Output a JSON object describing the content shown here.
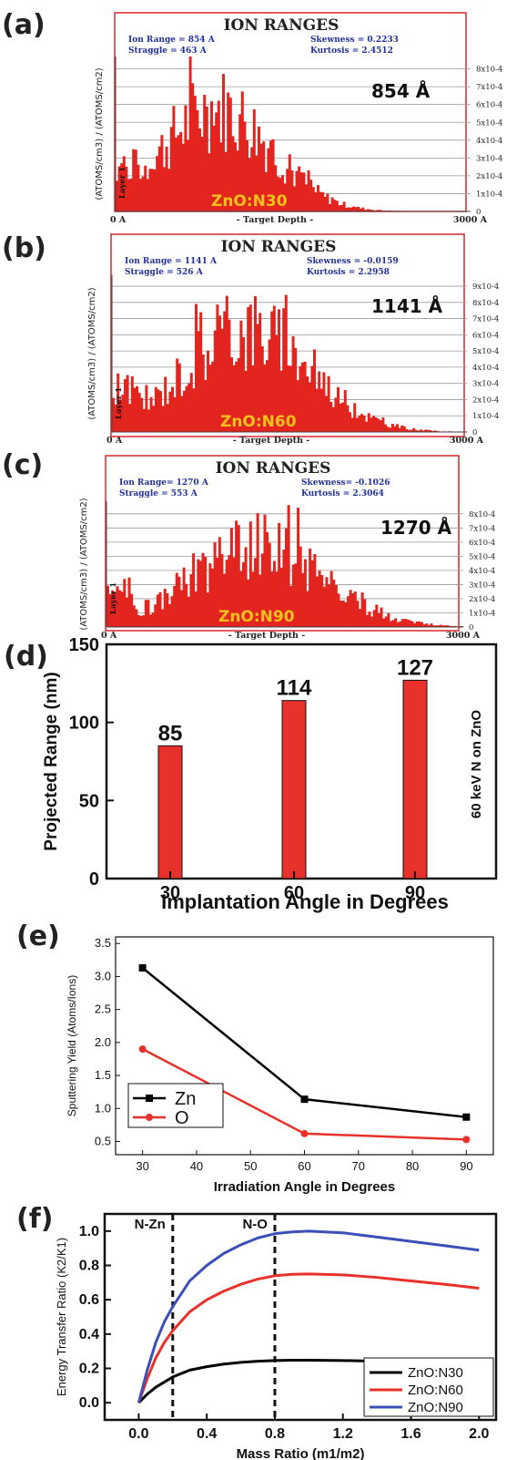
{
  "panels": [
    {
      "letter": "(a)",
      "chart_data": {
        "type": "bar",
        "title": "ION RANGES",
        "stats": {
          "range": "Ion Range = 854 A",
          "straggle": "Straggle = 463 A",
          "skewness": "Skewness = 0.2233",
          "kurtosis": "Kurtosis = 2.4512"
        },
        "ylabel": "(ATOMS/cm3) / (ATOMS/cm2)",
        "xlabel": "- Target Depth -",
        "x_start_label": "0 A",
        "x_end_label": "3000 A",
        "yticks": [
          "8x10-4",
          "7x10-4",
          "6x10-4",
          "5x10-4",
          "4x10-4",
          "3x10-4",
          "2x10-4",
          "1x10-4",
          "0"
        ],
        "layer_label": "Layer 1",
        "annotation": "854 Å",
        "sample_label": "ZnO:N30",
        "xlim": [
          0,
          3000
        ],
        "ylim": [
          0,
          0.0009
        ],
        "peak_depth": 854,
        "straggle": 463,
        "peak": 0.0006
      }
    },
    {
      "letter": "(b)",
      "chart_data": {
        "type": "bar",
        "title": "ION RANGES",
        "stats": {
          "range": "Ion Range = 1141 A",
          "straggle": "Straggle = 526 A",
          "skewness": "Skewness = -0.0159",
          "kurtosis": "Kurtosis = 2.2958"
        },
        "ylabel": "(ATOMS/cm3) / (ATOMS/cm2)",
        "xlabel": "- Target Depth -",
        "x_start_label": "0 A",
        "x_end_label": "3000 A",
        "yticks": [
          "9x10-4",
          "8x10-4",
          "7x10-4",
          "6x10-4",
          "5x10-4",
          "4x10-4",
          "3x10-4",
          "2x10-4",
          "1x10-4",
          "0"
        ],
        "layer_label": "Layer 1",
        "annotation": "1141 Å",
        "sample_label": "ZnO:N60",
        "xlim": [
          0,
          3000
        ],
        "ylim": [
          0,
          0.00095
        ],
        "peak_depth": 1141,
        "straggle": 526,
        "peak": 0.00062
      }
    },
    {
      "letter": "(c)",
      "chart_data": {
        "type": "bar",
        "title": "ION RANGES",
        "stats": {
          "range": "Ion Range= 1270 A",
          "straggle": "Straggle = 553 A",
          "skewness": "Skewness= -0.1026",
          "kurtosis": "Kurtosis = 2.3064"
        },
        "ylabel": "(ATOMS/cm3) / (ATOMS/cm2)",
        "xlabel": "- Target Depth -",
        "x_start_label": "0 A",
        "x_end_label": "3000 A",
        "yticks": [
          "8x10-4",
          "7x10-4",
          "6x10-4",
          "5x10-4",
          "4x10-4",
          "3x10-4",
          "2x10-4",
          "1x10-4",
          "0"
        ],
        "layer_label": "Layer 1",
        "annotation": "1270 Å",
        "sample_label": "ZnO:N90",
        "xlim": [
          0,
          3000
        ],
        "ylim": [
          0,
          0.00088
        ],
        "peak_depth": 1270,
        "straggle": 553,
        "peak": 0.00058
      }
    }
  ],
  "panel_d": {
    "letter": "(d)",
    "chart_data": {
      "type": "bar",
      "categories": [
        "30",
        "60",
        "90"
      ],
      "values": [
        85,
        114,
        127
      ],
      "value_labels": [
        "85",
        "114",
        "127"
      ],
      "ylabel": "Projected Range (nm)",
      "xlabel": "Implantation Angle in Degrees",
      "side_label": "60 keV N on ZnO",
      "ylim": [
        0,
        150
      ],
      "yticks": [
        "0",
        "50",
        "100",
        "150"
      ],
      "bar_color": "#e8312a"
    }
  },
  "panel_e": {
    "letter": "(e)",
    "chart_data": {
      "type": "line",
      "x": [
        30,
        60,
        90
      ],
      "series": [
        {
          "name": "Zn",
          "values": [
            3.13,
            1.14,
            0.87
          ],
          "color": "#000000",
          "marker": "square"
        },
        {
          "name": "O",
          "values": [
            1.9,
            0.62,
            0.53
          ],
          "color": "#e8312a",
          "marker": "circle"
        }
      ],
      "ylabel": "Sputtering Yield (Atoms/Ions)",
      "xlabel": "Irradiation Angle in Degrees",
      "xlim": [
        25,
        95
      ],
      "ylim": [
        0.3,
        3.6
      ],
      "xticks": [
        "30",
        "40",
        "50",
        "60",
        "70",
        "80",
        "90"
      ],
      "yticks": [
        "0.5",
        "1.0",
        "1.5",
        "2.0",
        "2.5",
        "3.0",
        "3.5"
      ]
    }
  },
  "panel_f": {
    "letter": "(f)",
    "chart_data": {
      "type": "line",
      "x": [
        0,
        0.05,
        0.1,
        0.15,
        0.2,
        0.3,
        0.4,
        0.5,
        0.6,
        0.7,
        0.8,
        0.9,
        1.0,
        1.2,
        1.4,
        1.6,
        1.8,
        2.0
      ],
      "series": [
        {
          "name": "ZnO:N30",
          "color": "#000000",
          "values": [
            0,
            0.05,
            0.09,
            0.12,
            0.15,
            0.19,
            0.21,
            0.225,
            0.235,
            0.242,
            0.246,
            0.248,
            0.248,
            0.246,
            0.242,
            0.236,
            0.229,
            0.222
          ]
        },
        {
          "name": "ZnO:N60",
          "color": "#e8312a",
          "values": [
            0,
            0.14,
            0.26,
            0.35,
            0.42,
            0.53,
            0.6,
            0.65,
            0.69,
            0.72,
            0.74,
            0.748,
            0.75,
            0.745,
            0.73,
            0.71,
            0.69,
            0.667
          ]
        },
        {
          "name": "ZnO:N90",
          "color": "#3b4fb8",
          "values": [
            0,
            0.19,
            0.35,
            0.47,
            0.56,
            0.71,
            0.8,
            0.87,
            0.92,
            0.96,
            0.985,
            0.995,
            1.0,
            0.99,
            0.965,
            0.94,
            0.915,
            0.889
          ]
        }
      ],
      "ylabel": "Energy Transfer Ratio (K2/K1)",
      "xlabel": "Mass Ratio (m1/m2)",
      "xlim": [
        -0.2,
        2.1
      ],
      "ylim": [
        -0.1,
        1.1
      ],
      "xticks": [
        "0.0",
        "0.4",
        "0.8",
        "1.2",
        "1.6",
        "2.0"
      ],
      "yticks": [
        "0.0",
        "0.2",
        "0.4",
        "0.6",
        "0.8",
        "1.0"
      ],
      "vlines": [
        {
          "x": 0.2,
          "label": "N-Zn"
        },
        {
          "x": 0.8,
          "label": "N-O"
        }
      ]
    }
  }
}
